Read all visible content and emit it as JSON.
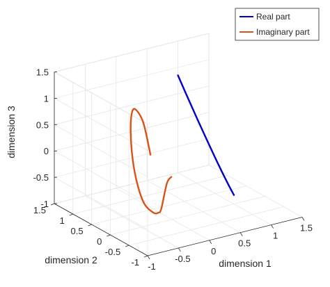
{
  "chart_data": {
    "type": "line",
    "projection": "3d",
    "xlabel": "dimension 1",
    "ylabel": "dimension 2",
    "zlabel": "dimension 3",
    "xlim": [
      -1,
      1.5
    ],
    "ylim": [
      -1,
      1.5
    ],
    "zlim": [
      -1,
      1.5
    ],
    "xticks": [
      "-1",
      "-0.5",
      "0",
      "0.5",
      "1",
      "1.5"
    ],
    "yticks": [
      "1.5",
      "1",
      "0.5",
      "0",
      "-0.5",
      "-1"
    ],
    "zticks": [
      "-1",
      "-0.5",
      "0",
      "0.5",
      "1",
      "1.5"
    ],
    "grid": true,
    "legend": {
      "position": "top-right"
    },
    "series": [
      {
        "name": "Real part",
        "color": "#0000cc",
        "points": [
          [
            1,
            1.5,
            0.85
          ],
          [
            1,
            1.23,
            0.52
          ],
          [
            1,
            0.96,
            0.2
          ],
          [
            1,
            0.69,
            -0.11
          ],
          [
            1,
            0.43,
            -0.4
          ],
          [
            1,
            0.18,
            -0.66
          ],
          [
            1,
            0,
            -0.83
          ]
        ]
      },
      {
        "name": "Imaginary part",
        "color": "#d95319",
        "points": [
          [
            0,
            0.58,
            0
          ],
          [
            0,
            0.77,
            0.53
          ],
          [
            0,
            0.98,
            0.7
          ],
          [
            0,
            1.08,
            0.59
          ],
          [
            0,
            1.11,
            0.23
          ],
          [
            0,
            1.06,
            -0.26
          ],
          [
            0,
            0.93,
            -0.7
          ],
          [
            0,
            0.74,
            -1
          ],
          [
            0,
            0.5,
            -1.07
          ],
          [
            0,
            0.37,
            -1.02
          ],
          [
            0,
            0.29,
            -0.91
          ],
          [
            0,
            0.14,
            -0.37
          ],
          [
            0,
            0.02,
            -0.2
          ]
        ]
      }
    ]
  }
}
